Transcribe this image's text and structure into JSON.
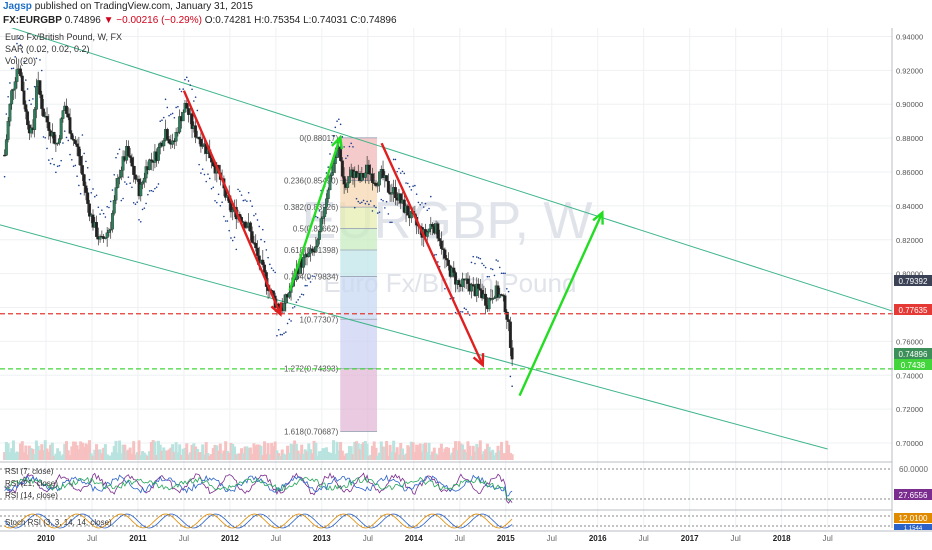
{
  "header": {
    "user": "Jagsp",
    "published": "published on TradingView.com, January 31, 2015",
    "symbol": "FX:EURGBP",
    "last": "0.74896",
    "change": "▼ −0.00216 (−0.29%)",
    "ohlc": "O:0.74281 H:0.75354 L:0.74031 C:0.74896"
  },
  "legend": {
    "title": "Euro Fx/British Pound, W, FX",
    "sar": "SAR (0.02, 0.02, 0.2)",
    "vol": "Vol (20)",
    "rsi1": "RSI (7, close)",
    "rsi2": "RSI (21, close)",
    "rsi3": "RSI (14, close)",
    "stoch": "Stoch RSI (3, 3, 14, 14, close)"
  },
  "watermark": {
    "symbol": "EURGBP, W",
    "name": "Euro Fx/British Pound"
  },
  "price_badges": {
    "current": "0.74896",
    "level": "0.7438",
    "red_line": "0.77635",
    "high_tick": "0.79392"
  },
  "oscillator_badges": {
    "rsi_top": "60.0000",
    "rsi_value": "27.6556",
    "stoch_value": "12.0100",
    "stoch_low": "1.1544"
  },
  "colors": {
    "up": "#26a69a",
    "down": "#ef5350",
    "channel": "#3fb58a",
    "red_dash": "#e53935",
    "green_dash": "#43d63c",
    "arrow_red": "#e02020",
    "arrow_green": "#22dd22",
    "sar": "#1a3e8f"
  },
  "chart_data": {
    "type": "candlestick",
    "symbol": "EURGBP",
    "interval": "W",
    "x_ticks": [
      "2010",
      "Jul",
      "2011",
      "Jul",
      "2012",
      "Jul",
      "2013",
      "Jul",
      "2014",
      "Jul",
      "2015",
      "Jul",
      "2016",
      "Jul",
      "2017",
      "Jul",
      "2018",
      "Jul"
    ],
    "y_ticks": [
      "0.70000",
      "0.72000",
      "0.74000",
      "0.76000",
      "0.78000",
      "0.80000",
      "0.82000",
      "0.84000",
      "0.86000",
      "0.88000",
      "0.90000",
      "0.92000",
      "0.94000"
    ],
    "ylim": [
      0.69,
      0.945
    ],
    "xlim": [
      2009.5,
      2019.2
    ],
    "price_path": [
      [
        2009.55,
        0.87
      ],
      [
        2009.62,
        0.905
      ],
      [
        2009.7,
        0.925
      ],
      [
        2009.78,
        0.895
      ],
      [
        2009.85,
        0.88
      ],
      [
        2009.9,
        0.915
      ],
      [
        2009.97,
        0.895
      ],
      [
        2010.05,
        0.885
      ],
      [
        2010.12,
        0.875
      ],
      [
        2010.2,
        0.9
      ],
      [
        2010.28,
        0.882
      ],
      [
        2010.35,
        0.872
      ],
      [
        2010.45,
        0.842
      ],
      [
        2010.52,
        0.828
      ],
      [
        2010.6,
        0.818
      ],
      [
        2010.7,
        0.828
      ],
      [
        2010.8,
        0.86
      ],
      [
        2010.88,
        0.872
      ],
      [
        2010.95,
        0.86
      ],
      [
        2011.02,
        0.848
      ],
      [
        2011.1,
        0.865
      ],
      [
        2011.2,
        0.87
      ],
      [
        2011.3,
        0.885
      ],
      [
        2011.38,
        0.875
      ],
      [
        2011.45,
        0.89
      ],
      [
        2011.52,
        0.9
      ],
      [
        2011.6,
        0.885
      ],
      [
        2011.7,
        0.878
      ],
      [
        2011.8,
        0.868
      ],
      [
        2011.9,
        0.855
      ],
      [
        2012.0,
        0.838
      ],
      [
        2012.1,
        0.835
      ],
      [
        2012.2,
        0.828
      ],
      [
        2012.3,
        0.81
      ],
      [
        2012.4,
        0.795
      ],
      [
        2012.5,
        0.782
      ],
      [
        2012.58,
        0.78
      ],
      [
        2012.65,
        0.79
      ],
      [
        2012.75,
        0.805
      ],
      [
        2012.85,
        0.81
      ],
      [
        2012.95,
        0.815
      ],
      [
        2013.02,
        0.838
      ],
      [
        2013.1,
        0.86
      ],
      [
        2013.18,
        0.875
      ],
      [
        2013.25,
        0.85
      ],
      [
        2013.33,
        0.86
      ],
      [
        2013.42,
        0.855
      ],
      [
        2013.5,
        0.862
      ],
      [
        2013.58,
        0.855
      ],
      [
        2013.65,
        0.858
      ],
      [
        2013.72,
        0.85
      ],
      [
        2013.8,
        0.848
      ],
      [
        2013.88,
        0.84
      ],
      [
        2013.95,
        0.835
      ],
      [
        2014.05,
        0.827
      ],
      [
        2014.12,
        0.822
      ],
      [
        2014.2,
        0.83
      ],
      [
        2014.28,
        0.822
      ],
      [
        2014.35,
        0.805
      ],
      [
        2014.42,
        0.8
      ],
      [
        2014.5,
        0.792
      ],
      [
        2014.58,
        0.795
      ],
      [
        2014.65,
        0.79
      ],
      [
        2014.72,
        0.79
      ],
      [
        2014.8,
        0.783
      ],
      [
        2014.88,
        0.79
      ],
      [
        2014.95,
        0.786
      ],
      [
        2015.0,
        0.78
      ],
      [
        2015.05,
        0.76
      ],
      [
        2015.08,
        0.749
      ]
    ],
    "fibonacci": [
      {
        "ratio": "0",
        "price": 0.88017
      },
      {
        "ratio": "0.236",
        "price": 0.8549
      },
      {
        "ratio": "0.382",
        "price": 0.83926
      },
      {
        "ratio": "0.5",
        "price": 0.82662
      },
      {
        "ratio": "0.618",
        "price": 0.81398
      },
      {
        "ratio": "0.764",
        "price": 0.79834
      },
      {
        "ratio": "1",
        "price": 0.77307
      },
      {
        "ratio": "1.272",
        "price": 0.74393
      },
      {
        "ratio": "1.618",
        "price": 0.70687
      }
    ],
    "fib_labels": [
      "0(0.88017)",
      "0.236(0.85490)",
      "0.382(0.83926)",
      "0.5(0.82662)",
      "0.618(0.81398)",
      "0.764(0.79834)",
      "1(0.77307)",
      "1.272(0.74393)",
      "1.618(0.70687)"
    ],
    "fib_range_x": [
      2013.2,
      2013.6
    ],
    "fib_colors": [
      "#f2b8b8",
      "#f6d7b0",
      "#e6edb0",
      "#c8ecc0",
      "#c0e6ea",
      "#c8d8f2",
      "#cdd2f3",
      "#e2b8d6"
    ],
    "horizontal_lines": [
      {
        "price": 0.77635,
        "color": "red",
        "style": "dashed"
      },
      {
        "price": 0.7438,
        "color": "green",
        "style": "dashed"
      }
    ],
    "channel_upper": [
      [
        2009.55,
        0.9465
      ],
      [
        2019.2,
        0.778
      ]
    ],
    "channel_lower": [
      [
        2009.5,
        0.8288
      ],
      [
        2018.5,
        0.6965
      ]
    ],
    "arrows": [
      {
        "from": [
          2011.5,
          0.908
        ],
        "to": [
          2012.55,
          0.776
        ],
        "color": "red"
      },
      {
        "from": [
          2012.65,
          0.79
        ],
        "to": [
          2013.2,
          0.8805
        ],
        "color": "green"
      },
      {
        "from": [
          2013.65,
          0.877
        ],
        "to": [
          2014.75,
          0.746
        ],
        "color": "red"
      },
      {
        "from": [
          2015.15,
          0.728
        ],
        "to": [
          2016.05,
          0.836
        ],
        "color": "green"
      }
    ],
    "rsi_top": 60.0,
    "rsi_last": 27.6556,
    "stoch_last": 12.01,
    "stoch_low": 1.1544
  }
}
